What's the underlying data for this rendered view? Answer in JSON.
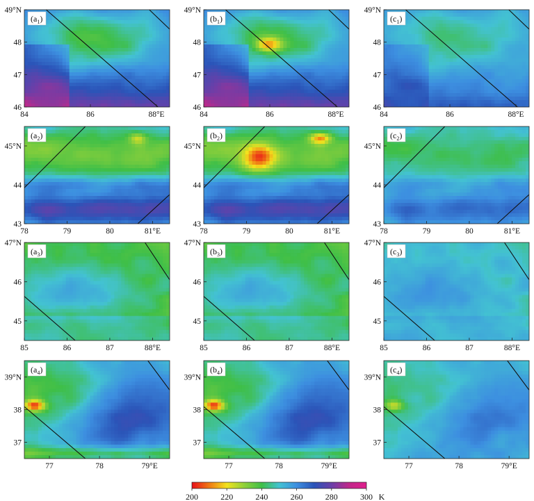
{
  "chart_data": {
    "type": "heatmap",
    "colorbar": {
      "ticks": [
        200,
        220,
        240,
        260,
        280,
        300
      ],
      "unit": "K",
      "range": [
        200,
        300
      ],
      "colors": [
        "#e8101a",
        "#f07a14",
        "#f2e21e",
        "#8fd03a",
        "#3fbf48",
        "#43c2d2",
        "#3d8fe0",
        "#2b54b8",
        "#6a3fa8",
        "#c0288a",
        "#e01e8c"
      ]
    },
    "panel_labels": [
      [
        "(a1)",
        "(b1)",
        "(c1)"
      ],
      [
        "(a2)",
        "(b2)",
        "(c2)"
      ],
      [
        "(a3)",
        "(b3)",
        "(c3)"
      ],
      [
        "(a4)",
        "(b4)",
        "(c4)"
      ]
    ],
    "rows": [
      {
        "xticks": [
          "84",
          "86",
          "88°E"
        ],
        "yticks": [
          "46",
          "47",
          "48",
          "49°N"
        ],
        "xlim": [
          84,
          88.4
        ],
        "ylim": [
          46,
          49
        ]
      },
      {
        "xticks": [
          "78",
          "79",
          "80",
          "81°E"
        ],
        "yticks": [
          "43",
          "44",
          "45°N"
        ],
        "xlim": [
          78,
          81.4
        ],
        "ylim": [
          43,
          45.5
        ]
      },
      {
        "xticks": [
          "85",
          "86",
          "87",
          "88°E"
        ],
        "yticks": [
          "45",
          "46",
          "47°N"
        ],
        "xlim": [
          85,
          88.4
        ],
        "ylim": [
          44.5,
          47
        ]
      },
      {
        "xticks": [
          "77",
          "78",
          "79°E"
        ],
        "yticks": [
          "37",
          "38",
          "39°N"
        ],
        "xlim": [
          76.5,
          79.4
        ],
        "ylim": [
          36.5,
          39.5
        ]
      }
    ]
  }
}
